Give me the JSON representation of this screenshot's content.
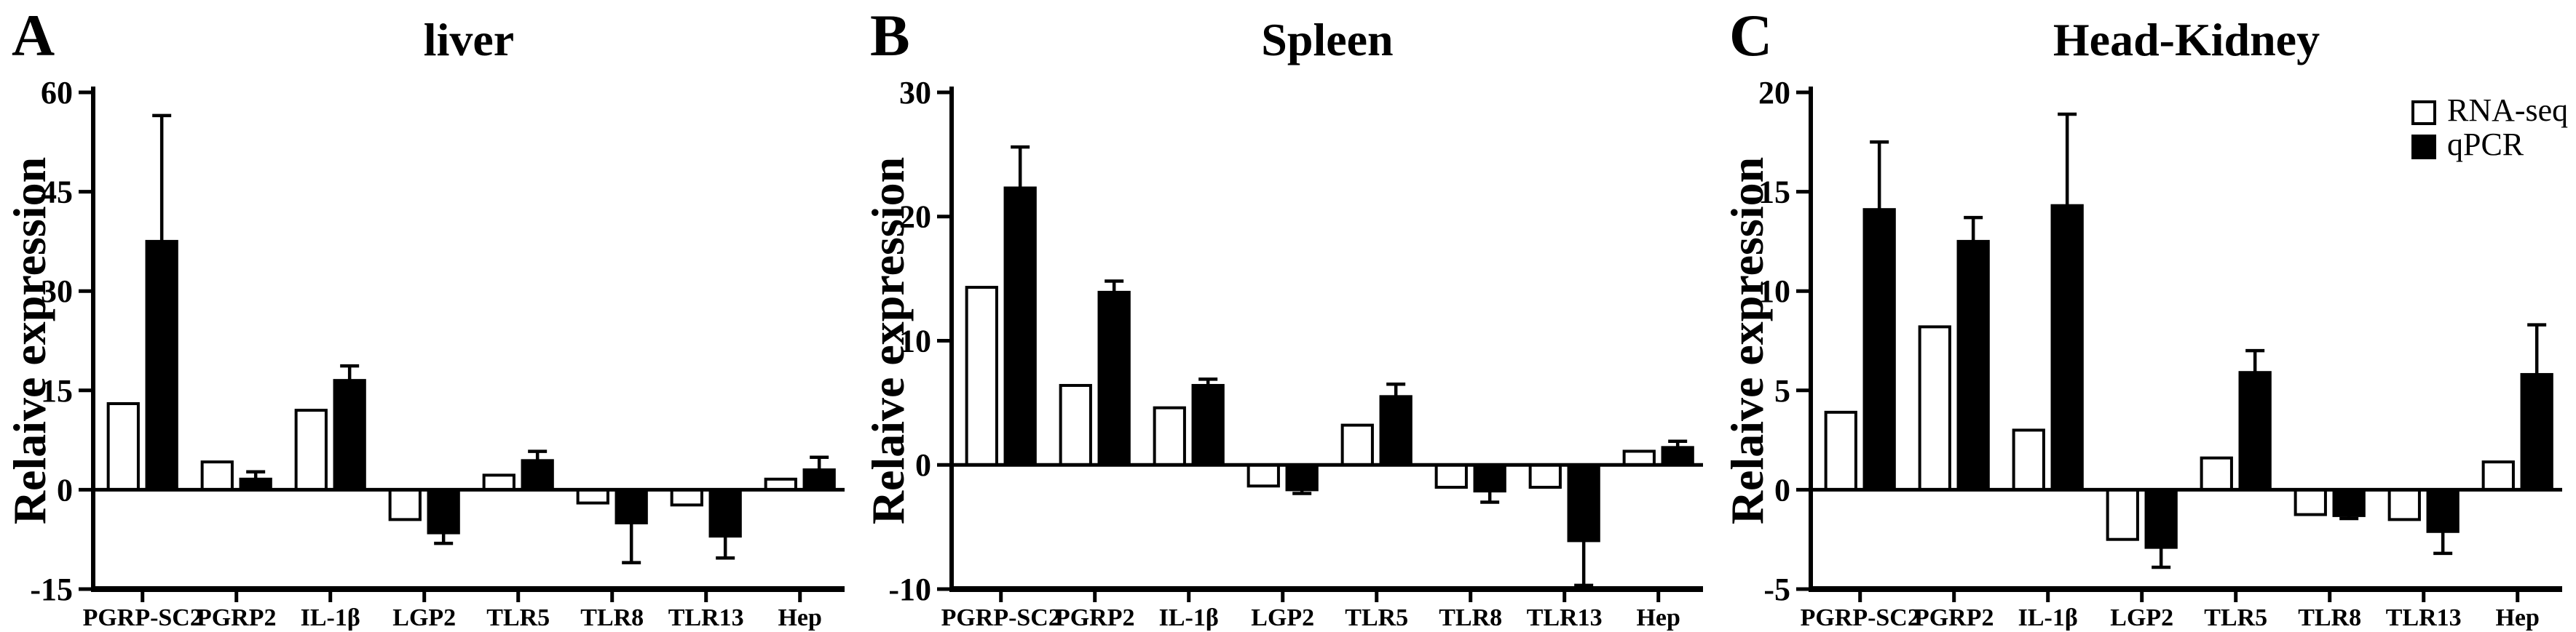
{
  "figure": {
    "description": "RNA-seq vs qPCR relative expression validation figure with three tissue panels",
    "colors": {
      "axis": "#000000",
      "bar_outline": "#000000",
      "background": "#ffffff"
    },
    "legend": {
      "items": [
        {
          "label": "RNA-seq",
          "fill": "#ffffff"
        },
        {
          "label": "qPCR",
          "fill": "#000000"
        }
      ]
    }
  },
  "chart_data": [
    {
      "type": "bar",
      "panel_letter": "A",
      "title": "liver",
      "ylabel": "Relaive expression",
      "ylim": [
        -15,
        60
      ],
      "yticks": [
        60,
        45,
        30,
        15,
        0,
        -15
      ],
      "grid": false,
      "legend_position": "none",
      "show_legend": false,
      "categories": [
        "PGRP-SC2",
        "PGRP2",
        "IL-1β",
        "LGP2",
        "TLR5",
        "TLR8",
        "TLR13",
        "Hep"
      ],
      "series": [
        {
          "name": "RNA-seq",
          "fill": "#ffffff",
          "values": [
            13,
            4.2,
            12,
            -4.5,
            2.2,
            -2,
            -2.3,
            1.6
          ]
        },
        {
          "name": "qPCR",
          "fill": "#000000",
          "values": [
            37.5,
            1.6,
            16.5,
            -6.5,
            4.4,
            -5,
            -7,
            3
          ],
          "errors": [
            19,
            1.1,
            2.2,
            1.6,
            1.4,
            6,
            3.3,
            1.9
          ]
        }
      ]
    },
    {
      "type": "bar",
      "panel_letter": "B",
      "title": "Spleen",
      "ylabel": "Relaive expression",
      "ylim": [
        -10,
        30
      ],
      "yticks": [
        30,
        20,
        10,
        0,
        -10
      ],
      "grid": false,
      "legend_position": "none",
      "show_legend": false,
      "categories": [
        "PGRP-SC2",
        "PGRP2",
        "IL-1β",
        "LGP2",
        "TLR5",
        "TLR8",
        "TLR13",
        "Hep"
      ],
      "series": [
        {
          "name": "RNA-seq",
          "fill": "#ffffff",
          "values": [
            14.3,
            6.4,
            4.6,
            -1.7,
            3.2,
            -1.8,
            -1.8,
            1.1
          ]
        },
        {
          "name": "qPCR",
          "fill": "#000000",
          "values": [
            22.3,
            13.9,
            6.4,
            -2,
            5.5,
            -2.1,
            -6.1,
            1.4
          ],
          "errors": [
            3.3,
            0.9,
            0.5,
            0.3,
            1.0,
            0.9,
            3.6,
            0.5
          ]
        }
      ]
    },
    {
      "type": "bar",
      "panel_letter": "C",
      "title": "Head-Kidney",
      "ylabel": "Relaive expression",
      "ylim": [
        -5,
        20
      ],
      "yticks": [
        20,
        15,
        10,
        5,
        0,
        -5
      ],
      "grid": false,
      "legend_position": "top-right",
      "show_legend": true,
      "categories": [
        "PGRP-SC2",
        "PGRP2",
        "IL-1β",
        "LGP2",
        "TLR5",
        "TLR8",
        "TLR13",
        "Hep"
      ],
      "series": [
        {
          "name": "RNA-seq",
          "fill": "#ffffff",
          "values": [
            3.9,
            8.2,
            3.0,
            -2.5,
            1.6,
            -1.25,
            -1.5,
            1.4
          ]
        },
        {
          "name": "qPCR",
          "fill": "#000000",
          "values": [
            14.1,
            12.5,
            14.3,
            -2.9,
            5.9,
            -1.3,
            -2.1,
            5.8
          ],
          "errors": [
            3.4,
            1.2,
            4.6,
            1.0,
            1.1,
            0.15,
            1.1,
            2.5
          ]
        }
      ]
    }
  ]
}
